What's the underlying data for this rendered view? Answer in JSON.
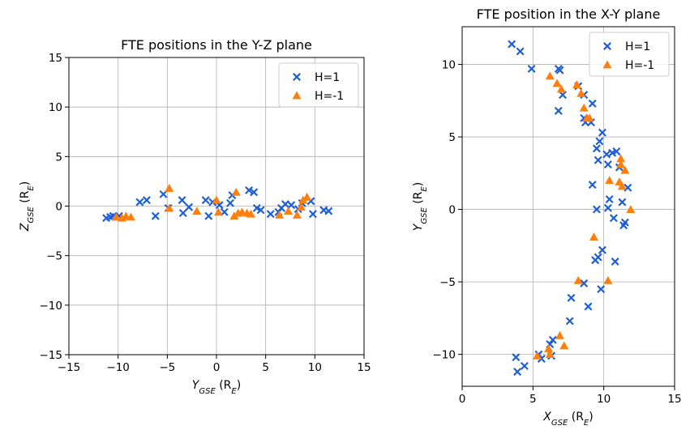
{
  "chart_data": [
    {
      "type": "scatter",
      "title": "FTE positions in the Y-Z plane",
      "xlabel": {
        "base": "Y",
        "sub": "GSE",
        "rest": " (R",
        "rsub": "E",
        "end": ")"
      },
      "ylabel": {
        "base": "Z",
        "sub": "GSE",
        "rest": " (R",
        "rsub": "E",
        "end": ")"
      },
      "xlim": [
        -15,
        15
      ],
      "ylim": [
        -15,
        15
      ],
      "xticks": [
        -15,
        -10,
        -5,
        0,
        5,
        10,
        15
      ],
      "yticks": [
        -15,
        -10,
        -5,
        0,
        5,
        10,
        15
      ],
      "grid": true,
      "legend_loc": "top-right",
      "series": [
        {
          "name": "H=1",
          "marker": "x",
          "color": "#1f5fd6",
          "points": [
            [
              -11.2,
              -1.2
            ],
            [
              -10.8,
              -1.1
            ],
            [
              -10.5,
              -1.0
            ],
            [
              -9.9,
              -1.0
            ],
            [
              -7.8,
              0.4
            ],
            [
              -7.1,
              0.6
            ],
            [
              -6.2,
              -1.0
            ],
            [
              -5.4,
              1.2
            ],
            [
              -4.9,
              -0.2
            ],
            [
              -3.5,
              0.6
            ],
            [
              -3.4,
              -0.7
            ],
            [
              -2.8,
              -0.1
            ],
            [
              -1.1,
              0.6
            ],
            [
              -0.8,
              -1.0
            ],
            [
              -0.4,
              0.4
            ],
            [
              0.3,
              0.1
            ],
            [
              0.8,
              -0.6
            ],
            [
              1.4,
              0.3
            ],
            [
              1.6,
              1.1
            ],
            [
              3.3,
              1.6
            ],
            [
              3.8,
              1.4
            ],
            [
              4.1,
              -0.2
            ],
            [
              4.5,
              -0.4
            ],
            [
              5.5,
              -0.8
            ],
            [
              6.3,
              -0.6
            ],
            [
              6.6,
              -0.2
            ],
            [
              7.0,
              0.2
            ],
            [
              7.6,
              0.1
            ],
            [
              8.3,
              -0.3
            ],
            [
              8.7,
              0.3
            ],
            [
              9.6,
              0.5
            ],
            [
              9.8,
              -0.8
            ],
            [
              10.9,
              -0.4
            ],
            [
              11.4,
              -0.5
            ]
          ]
        },
        {
          "name": "H=-1",
          "marker": "triangle",
          "color": "#ff7f0e",
          "points": [
            [
              -10.2,
              -1.1
            ],
            [
              -9.6,
              -1.2
            ],
            [
              -9.2,
              -1.0
            ],
            [
              -8.7,
              -1.1
            ],
            [
              -4.8,
              1.8
            ],
            [
              -4.8,
              -0.2
            ],
            [
              -2.0,
              -0.5
            ],
            [
              0.0,
              0.6
            ],
            [
              0.2,
              -0.6
            ],
            [
              1.8,
              -1.0
            ],
            [
              2.0,
              1.4
            ],
            [
              2.2,
              -0.7
            ],
            [
              2.6,
              -0.6
            ],
            [
              3.1,
              -0.7
            ],
            [
              3.5,
              -0.8
            ],
            [
              6.4,
              -0.9
            ],
            [
              7.3,
              -0.5
            ],
            [
              8.2,
              -0.9
            ],
            [
              8.6,
              -0.1
            ],
            [
              8.8,
              0.6
            ],
            [
              9.2,
              0.9
            ]
          ]
        }
      ]
    },
    {
      "type": "scatter",
      "title": "FTE position in the X-Y plane",
      "xlabel": {
        "base": "X",
        "sub": "GSE",
        "rest": " (R",
        "rsub": "E",
        "end": ")"
      },
      "ylabel": {
        "base": "Y",
        "sub": "GSE",
        "rest": " (R",
        "rsub": "E",
        "end": ")"
      },
      "xlim": [
        0,
        15
      ],
      "ylim": [
        -12.2,
        12.6
      ],
      "xticks": [
        0,
        5,
        10,
        15
      ],
      "yticks": [
        -10,
        -5,
        0,
        5,
        10
      ],
      "grid": true,
      "legend_loc": "top-right",
      "series": [
        {
          "name": "H=1",
          "marker": "x",
          "color": "#1f5fd6",
          "points": [
            [
              3.5,
              11.4
            ],
            [
              4.1,
              10.9
            ],
            [
              4.9,
              9.7
            ],
            [
              6.8,
              9.7
            ],
            [
              6.9,
              9.6
            ],
            [
              7.1,
              7.9
            ],
            [
              6.8,
              6.8
            ],
            [
              8.2,
              8.5
            ],
            [
              8.6,
              7.9
            ],
            [
              9.2,
              7.3
            ],
            [
              8.6,
              6.3
            ],
            [
              8.7,
              6.0
            ],
            [
              9.1,
              6.0
            ],
            [
              9.9,
              5.3
            ],
            [
              9.7,
              4.7
            ],
            [
              9.5,
              4.2
            ],
            [
              10.2,
              3.8
            ],
            [
              10.6,
              3.9
            ],
            [
              10.9,
              4.0
            ],
            [
              10.3,
              3.1
            ],
            [
              9.6,
              3.4
            ],
            [
              11.1,
              2.9
            ],
            [
              9.2,
              1.7
            ],
            [
              10.4,
              0.7
            ],
            [
              10.3,
              0.1
            ],
            [
              11.3,
              0.5
            ],
            [
              9.5,
              0.0
            ],
            [
              11.7,
              1.5
            ],
            [
              10.7,
              -0.6
            ],
            [
              11.4,
              -1.1
            ],
            [
              11.5,
              -0.9
            ],
            [
              9.9,
              -2.8
            ],
            [
              9.6,
              -3.3
            ],
            [
              9.4,
              -3.5
            ],
            [
              10.8,
              -3.6
            ],
            [
              9.8,
              -5.5
            ],
            [
              8.6,
              -5.1
            ],
            [
              7.7,
              -6.1
            ],
            [
              8.9,
              -6.7
            ],
            [
              7.6,
              -7.7
            ],
            [
              6.4,
              -9.0
            ],
            [
              6.2,
              -9.3
            ],
            [
              3.8,
              -10.2
            ],
            [
              3.9,
              -11.2
            ],
            [
              4.4,
              -10.8
            ],
            [
              5.4,
              -10.0
            ],
            [
              5.6,
              -10.3
            ],
            [
              6.3,
              -10.1
            ]
          ]
        },
        {
          "name": "H=-1",
          "marker": "triangle",
          "color": "#ff7f0e",
          "points": [
            [
              6.2,
              9.2
            ],
            [
              6.7,
              8.7
            ],
            [
              7.0,
              8.3
            ],
            [
              8.1,
              8.6
            ],
            [
              8.4,
              8.0
            ],
            [
              8.6,
              7.0
            ],
            [
              8.8,
              6.3
            ],
            [
              9.0,
              6.3
            ],
            [
              11.2,
              3.5
            ],
            [
              11.2,
              3.1
            ],
            [
              11.5,
              2.7
            ],
            [
              10.4,
              2.0
            ],
            [
              11.1,
              1.9
            ],
            [
              11.3,
              1.6
            ],
            [
              11.9,
              0.0
            ],
            [
              9.3,
              -1.9
            ],
            [
              8.2,
              -4.9
            ],
            [
              10.3,
              -4.9
            ],
            [
              6.9,
              -8.7
            ],
            [
              7.2,
              -9.4
            ],
            [
              6.1,
              -9.6
            ],
            [
              6.2,
              -10.0
            ],
            [
              5.3,
              -10.1
            ]
          ]
        }
      ]
    }
  ]
}
